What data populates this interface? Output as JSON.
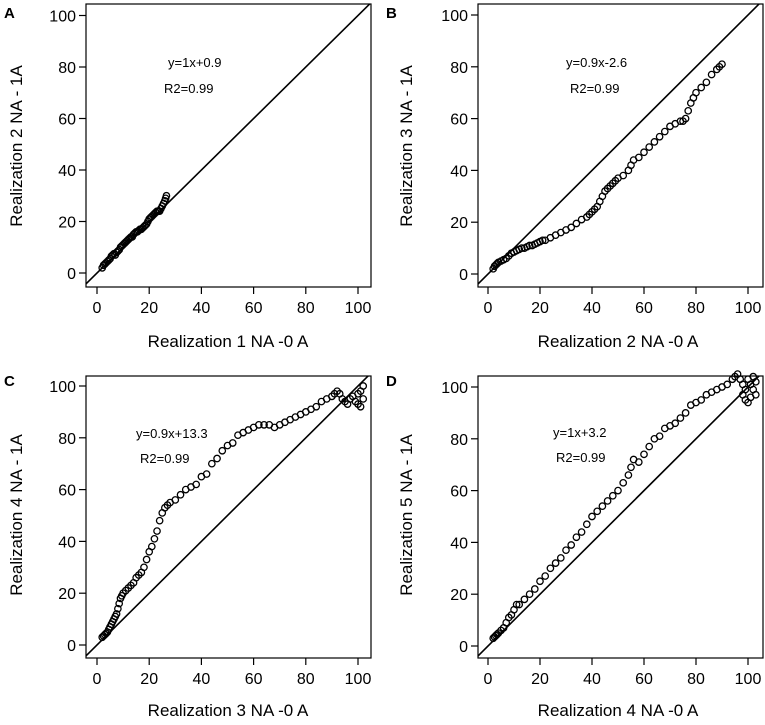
{
  "chart_data": [
    {
      "type": "scatter",
      "panel_label": "A",
      "xlabel": "Realization 1 NA -0 A",
      "ylabel": "Realization 2 NA - 1A",
      "xlim": [
        0,
        102
      ],
      "ylim": [
        0,
        102
      ],
      "xticks": [
        0,
        20,
        40,
        60,
        80,
        100
      ],
      "yticks": [
        0,
        20,
        40,
        60,
        80,
        100
      ],
      "reference_line": "y=x",
      "annotations": [
        "y=1x+0.9",
        "R2=0.99"
      ],
      "points": [
        [
          2,
          2
        ],
        [
          2.5,
          3
        ],
        [
          3,
          3.5
        ],
        [
          3.5,
          4
        ],
        [
          4,
          4.5
        ],
        [
          4.5,
          5
        ],
        [
          5,
          5.5
        ],
        [
          5.5,
          6.5
        ],
        [
          6,
          7
        ],
        [
          6.5,
          7.5
        ],
        [
          7,
          7
        ],
        [
          7.5,
          8
        ],
        [
          8,
          8.5
        ],
        [
          8.5,
          9
        ],
        [
          9,
          10
        ],
        [
          9.5,
          10.5
        ],
        [
          10,
          11
        ],
        [
          10.5,
          11.5
        ],
        [
          11,
          12
        ],
        [
          11.5,
          12.5
        ],
        [
          12,
          13
        ],
        [
          12.5,
          13.5
        ],
        [
          13,
          14
        ],
        [
          13.5,
          14
        ],
        [
          14,
          15
        ],
        [
          14.5,
          15.5
        ],
        [
          15,
          16
        ],
        [
          15.5,
          16
        ],
        [
          16,
          16.5
        ],
        [
          16.5,
          17
        ],
        [
          17,
          17
        ],
        [
          17.5,
          17.5
        ],
        [
          18,
          18
        ],
        [
          18.5,
          18.5
        ],
        [
          19,
          19
        ],
        [
          19.5,
          20
        ],
        [
          20,
          21
        ],
        [
          20.5,
          21.5
        ],
        [
          21,
          22
        ],
        [
          21.5,
          22.5
        ],
        [
          22,
          23
        ],
        [
          22.5,
          23.5
        ],
        [
          23,
          24
        ],
        [
          23.5,
          24
        ],
        [
          24,
          24
        ],
        [
          24.5,
          25
        ],
        [
          25,
          26
        ],
        [
          25.5,
          27
        ],
        [
          26,
          28
        ],
        [
          26.3,
          29
        ],
        [
          26.6,
          30
        ]
      ]
    },
    {
      "type": "scatter",
      "panel_label": "B",
      "xlabel": "Realization 2 NA -0 A",
      "ylabel": "Realization 3 NA - 1A",
      "xlim": [
        0,
        102
      ],
      "ylim": [
        0,
        102
      ],
      "xticks": [
        0,
        20,
        40,
        60,
        80,
        100
      ],
      "yticks": [
        0,
        20,
        40,
        60,
        80,
        100
      ],
      "reference_line": "y=x",
      "annotations": [
        "y=0.9x-2.6",
        "R2=0.99"
      ],
      "points": [
        [
          2,
          2
        ],
        [
          2.5,
          3
        ],
        [
          3,
          3.5
        ],
        [
          3.5,
          4
        ],
        [
          4,
          4.5
        ],
        [
          5,
          5
        ],
        [
          6,
          5.5
        ],
        [
          7,
          6
        ],
        [
          8,
          7
        ],
        [
          9,
          8
        ],
        [
          10,
          8.5
        ],
        [
          11,
          9
        ],
        [
          12,
          9.5
        ],
        [
          13,
          10
        ],
        [
          14,
          10
        ],
        [
          15,
          10.5
        ],
        [
          16,
          11
        ],
        [
          17,
          11
        ],
        [
          18,
          11.5
        ],
        [
          19,
          12
        ],
        [
          20,
          12.5
        ],
        [
          21,
          13
        ],
        [
          22,
          13
        ],
        [
          24,
          14
        ],
        [
          26,
          15
        ],
        [
          28,
          16
        ],
        [
          30,
          17
        ],
        [
          32,
          18
        ],
        [
          34,
          19.5
        ],
        [
          36,
          21
        ],
        [
          38,
          22
        ],
        [
          39,
          23
        ],
        [
          40,
          24
        ],
        [
          41,
          25
        ],
        [
          42,
          26
        ],
        [
          43,
          28
        ],
        [
          44,
          30
        ],
        [
          45,
          32
        ],
        [
          46,
          33
        ],
        [
          47,
          34
        ],
        [
          48,
          35
        ],
        [
          49,
          36
        ],
        [
          50,
          37
        ],
        [
          52,
          38
        ],
        [
          54,
          40
        ],
        [
          55,
          42
        ],
        [
          56,
          44
        ],
        [
          58,
          45
        ],
        [
          60,
          47
        ],
        [
          62,
          49
        ],
        [
          64,
          51
        ],
        [
          66,
          53
        ],
        [
          68,
          55
        ],
        [
          70,
          57
        ],
        [
          72,
          58
        ],
        [
          74,
          59
        ],
        [
          75,
          59
        ],
        [
          76,
          60
        ],
        [
          77,
          63
        ],
        [
          78,
          66
        ],
        [
          79,
          68
        ],
        [
          80,
          70
        ],
        [
          82,
          72
        ],
        [
          84,
          74
        ],
        [
          86,
          77
        ],
        [
          88,
          79
        ],
        [
          89,
          80
        ],
        [
          90,
          81
        ]
      ]
    },
    {
      "type": "scatter",
      "panel_label": "C",
      "xlabel": "Realization 3 NA -0 A",
      "ylabel": "Realization 4 NA - 1A",
      "xlim": [
        0,
        102
      ],
      "ylim": [
        0,
        102
      ],
      "xticks": [
        0,
        20,
        40,
        60,
        80,
        100
      ],
      "yticks": [
        0,
        20,
        40,
        60,
        80,
        100
      ],
      "reference_line": "y=x",
      "annotations": [
        "y=0.9x+13.3",
        "R2=0.99"
      ],
      "points": [
        [
          2,
          3
        ],
        [
          2.5,
          3.5
        ],
        [
          3,
          4
        ],
        [
          3.5,
          4.5
        ],
        [
          4,
          5
        ],
        [
          4.5,
          6
        ],
        [
          5,
          7
        ],
        [
          5.5,
          8
        ],
        [
          6,
          9
        ],
        [
          6.5,
          10
        ],
        [
          7,
          11
        ],
        [
          7.5,
          12
        ],
        [
          8,
          14
        ],
        [
          8.5,
          16
        ],
        [
          9,
          18
        ],
        [
          9.5,
          19
        ],
        [
          10,
          20
        ],
        [
          11,
          21
        ],
        [
          12,
          22
        ],
        [
          13,
          23
        ],
        [
          14,
          24
        ],
        [
          15,
          26
        ],
        [
          16,
          27
        ],
        [
          17,
          28
        ],
        [
          18,
          30
        ],
        [
          19,
          33
        ],
        [
          20,
          36
        ],
        [
          21,
          38
        ],
        [
          22,
          41
        ],
        [
          23,
          44
        ],
        [
          24,
          48
        ],
        [
          25,
          51
        ],
        [
          26,
          53
        ],
        [
          27,
          54
        ],
        [
          28,
          55
        ],
        [
          30,
          56
        ],
        [
          32,
          58
        ],
        [
          34,
          60
        ],
        [
          36,
          61
        ],
        [
          38,
          62
        ],
        [
          40,
          65
        ],
        [
          42,
          66
        ],
        [
          44,
          70
        ],
        [
          46,
          72
        ],
        [
          48,
          75
        ],
        [
          50,
          77
        ],
        [
          52,
          78
        ],
        [
          54,
          81
        ],
        [
          56,
          82
        ],
        [
          58,
          83
        ],
        [
          60,
          84
        ],
        [
          62,
          85
        ],
        [
          64,
          85
        ],
        [
          66,
          85
        ],
        [
          68,
          84
        ],
        [
          70,
          85
        ],
        [
          72,
          86
        ],
        [
          74,
          87
        ],
        [
          76,
          88
        ],
        [
          78,
          89
        ],
        [
          80,
          90
        ],
        [
          82,
          91
        ],
        [
          84,
          92
        ],
        [
          86,
          94
        ],
        [
          88,
          95
        ],
        [
          90,
          96
        ],
        [
          91,
          97
        ],
        [
          92,
          98
        ],
        [
          93,
          97
        ],
        [
          94,
          95
        ],
        [
          95,
          94
        ],
        [
          96,
          93
        ],
        [
          97,
          95
        ],
        [
          98,
          96
        ],
        [
          99,
          94
        ],
        [
          100,
          93
        ],
        [
          100,
          97
        ],
        [
          101,
          98
        ],
        [
          101,
          92
        ],
        [
          102,
          95
        ],
        [
          102,
          100
        ]
      ]
    },
    {
      "type": "scatter",
      "panel_label": "D",
      "xlabel": "Realization 4 NA -0 A",
      "ylabel": "Realization 5 NA - 1A",
      "xlim": [
        0,
        102
      ],
      "ylim": [
        0,
        102
      ],
      "xticks": [
        0,
        20,
        40,
        60,
        80,
        100
      ],
      "yticks": [
        0,
        20,
        40,
        60,
        80,
        100
      ],
      "reference_line": "y=x",
      "annotations": [
        "y=1x+3.2",
        "R2=0.99"
      ],
      "points": [
        [
          2,
          3
        ],
        [
          2.5,
          3.5
        ],
        [
          3,
          4
        ],
        [
          3.5,
          4.5
        ],
        [
          4,
          5
        ],
        [
          5,
          6
        ],
        [
          6,
          7
        ],
        [
          7,
          9
        ],
        [
          8,
          11
        ],
        [
          9,
          12
        ],
        [
          10,
          14
        ],
        [
          11,
          16
        ],
        [
          12,
          16
        ],
        [
          14,
          18
        ],
        [
          16,
          20
        ],
        [
          18,
          22
        ],
        [
          20,
          25
        ],
        [
          22,
          27
        ],
        [
          24,
          30
        ],
        [
          26,
          32
        ],
        [
          28,
          34
        ],
        [
          30,
          37
        ],
        [
          32,
          39
        ],
        [
          34,
          42
        ],
        [
          36,
          44
        ],
        [
          38,
          47
        ],
        [
          40,
          50
        ],
        [
          42,
          52
        ],
        [
          44,
          54
        ],
        [
          46,
          56
        ],
        [
          48,
          58
        ],
        [
          50,
          60
        ],
        [
          52,
          63
        ],
        [
          54,
          66
        ],
        [
          55,
          69
        ],
        [
          56,
          72
        ],
        [
          58,
          71
        ],
        [
          60,
          74
        ],
        [
          62,
          77
        ],
        [
          64,
          80
        ],
        [
          66,
          81
        ],
        [
          68,
          84
        ],
        [
          70,
          85
        ],
        [
          72,
          86
        ],
        [
          74,
          88
        ],
        [
          76,
          90
        ],
        [
          78,
          93
        ],
        [
          80,
          94
        ],
        [
          82,
          95
        ],
        [
          84,
          97
        ],
        [
          86,
          98
        ],
        [
          88,
          99
        ],
        [
          90,
          100
        ],
        [
          92,
          101
        ],
        [
          94,
          103
        ],
        [
          95,
          104
        ],
        [
          96,
          105
        ],
        [
          97,
          103
        ],
        [
          98,
          101
        ],
        [
          98,
          97
        ],
        [
          99,
          95
        ],
        [
          99,
          99
        ],
        [
          100,
          94
        ],
        [
          100,
          103
        ],
        [
          101,
          96
        ],
        [
          101,
          101
        ],
        [
          102,
          99
        ],
        [
          102,
          104
        ],
        [
          103,
          97
        ],
        [
          103,
          102
        ]
      ]
    }
  ]
}
